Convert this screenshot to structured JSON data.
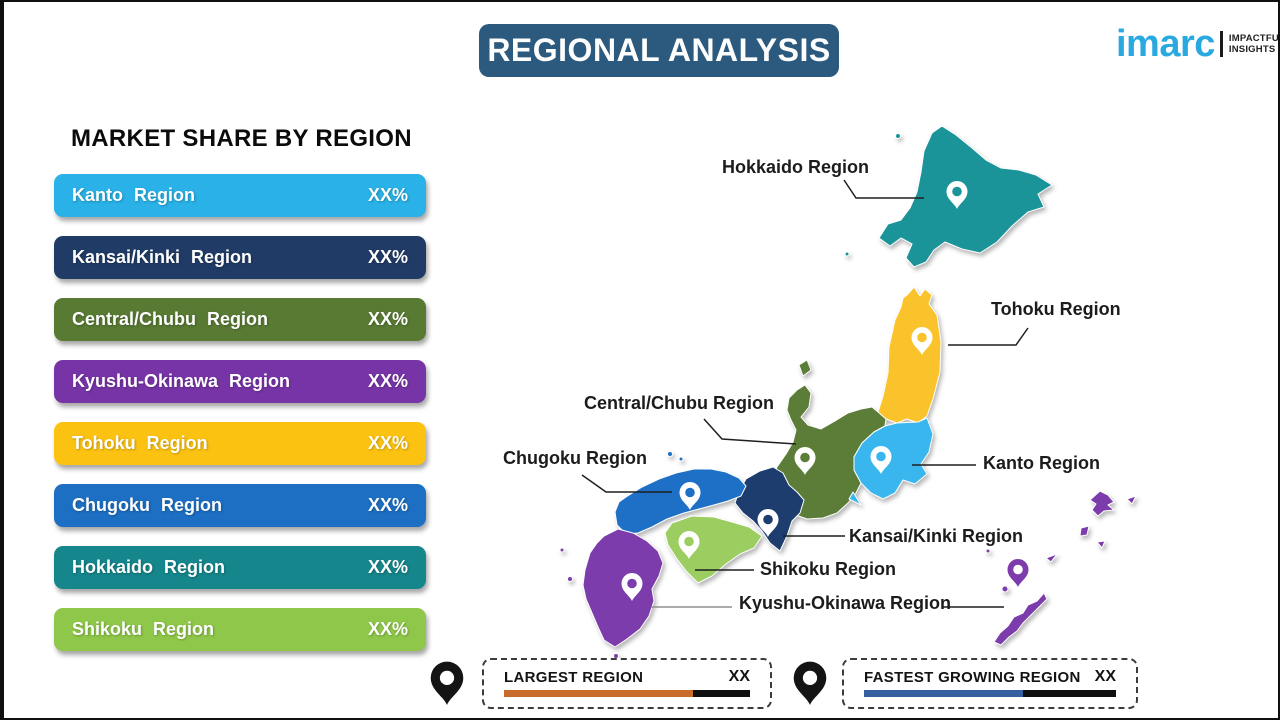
{
  "header": {
    "title": "REGIONAL ANALYSIS",
    "banner_color": "#2b5a7e"
  },
  "logo": {
    "brand": "imarc",
    "tagline1": "IMPACTFUL",
    "tagline2": "INSIGHTS",
    "brand_color": "#2aa9e0"
  },
  "panel": {
    "heading": "MARKET SHARE BY REGION",
    "bars": [
      {
        "label": "Kanto Region",
        "value": "XX%",
        "color": "#29b1e8"
      },
      {
        "label": "Kansai/Kinki Region",
        "value": "XX%",
        "color": "#203c66"
      },
      {
        "label": "Central/Chubu Region",
        "value": "XX%",
        "color": "#587a33"
      },
      {
        "label": "Kyushu-Okinawa Region",
        "value": "XX%",
        "color": "#7734a6"
      },
      {
        "label": "Tohoku Region",
        "value": "XX%",
        "color": "#fcc211"
      },
      {
        "label": "Chugoku Region",
        "value": "XX%",
        "color": "#1d6fc3"
      },
      {
        "label": "Hokkaido Region",
        "value": "XX%",
        "color": "#15868c"
      },
      {
        "label": "Shikoku Region",
        "value": "XX%",
        "color": "#8fc74a"
      }
    ]
  },
  "map": {
    "regions": {
      "hokkaido": {
        "name": "Hokkaido Region",
        "color": "#1b9499"
      },
      "tohoku": {
        "name": "Tohoku Region",
        "color": "#fbc32b"
      },
      "kanto": {
        "name": "Kanto Region",
        "color": "#3ab6ee"
      },
      "central": {
        "name": "Central/Chubu Region",
        "color": "#5c7d38"
      },
      "chugoku": {
        "name": "Chugoku Region",
        "color": "#1e70c6"
      },
      "kansai": {
        "name": "Kansai/Kinki Region",
        "color": "#1e3d6f"
      },
      "shikoku": {
        "name": "Shikoku Region",
        "color": "#9bcd61"
      },
      "kyushu": {
        "name": "Kyushu-Okinawa Region",
        "color": "#7d3cac"
      }
    }
  },
  "legend": {
    "largest": {
      "label": "LARGEST REGION",
      "value": "XX",
      "color": "#c96b2a",
      "fill_pct": 77
    },
    "fastest": {
      "label": "FASTEST GROWING REGION",
      "value": "XX",
      "color": "#355f9e",
      "fill_pct": 63
    }
  }
}
